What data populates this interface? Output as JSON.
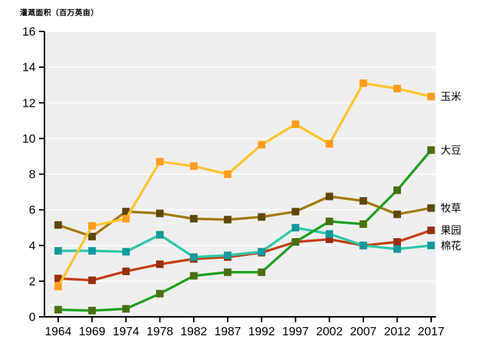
{
  "chart_data": {
    "type": "line",
    "title": "灌溉面积（百万英亩）",
    "xlabel": "",
    "ylabel": "灌溉面积（百万英亩）",
    "x_tick_labels": [
      "1964",
      "1969",
      "1974",
      "1978",
      "1982",
      "1987",
      "1992",
      "1997",
      "2002",
      "2007",
      "2012",
      "2017"
    ],
    "y_tick_labels": [
      "0",
      "2",
      "4",
      "6",
      "8",
      "10",
      "12",
      "14",
      "16"
    ],
    "ylim": [
      0,
      16
    ],
    "y_tick_step": 2,
    "grid": "horizontal",
    "legend_position": "right-end-of-line-labels",
    "marker": "square",
    "series": [
      {
        "key": "corn",
        "name": "玉米",
        "line_color": "#FFC431",
        "marker_color": "#FF9D1E",
        "values": [
          1.7,
          5.1,
          5.5,
          8.7,
          8.45,
          8.0,
          9.65,
          10.8,
          9.7,
          13.1,
          12.8,
          12.35
        ]
      },
      {
        "key": "soybean",
        "name": "大豆",
        "line_color": "#1EA11E",
        "marker_color": "#4A6E12",
        "values": [
          0.4,
          0.35,
          0.45,
          1.3,
          2.3,
          2.5,
          2.5,
          4.2,
          5.35,
          5.2,
          7.1,
          9.35
        ]
      },
      {
        "key": "pasture",
        "name": "牧草",
        "line_color": "#A2790D",
        "marker_color": "#5F470B",
        "values": [
          5.15,
          4.5,
          5.9,
          5.8,
          5.5,
          5.45,
          5.6,
          5.9,
          6.75,
          6.5,
          5.75,
          6.1
        ]
      },
      {
        "key": "orchard",
        "name": "果园",
        "line_color": "#C34017",
        "marker_color": "#96300D",
        "values": [
          2.15,
          2.05,
          2.55,
          2.95,
          3.25,
          3.35,
          3.6,
          4.2,
          4.35,
          4.0,
          4.2,
          4.85
        ]
      },
      {
        "key": "cotton",
        "name": "棉花",
        "line_color": "#2FC7A6",
        "marker_color": "#13989E",
        "values": [
          3.7,
          3.7,
          3.65,
          4.6,
          3.35,
          3.45,
          3.65,
          5.0,
          4.65,
          4.0,
          3.8,
          4.0
        ]
      }
    ],
    "draw_order": [
      "orchard",
      "cotton",
      "pasture",
      "corn",
      "soybean"
    ],
    "colors": {
      "plot_background": "#EFEFEF",
      "grid_line": "#FFFFFF",
      "axis": "#000000",
      "page_background": "#FFFFFF",
      "tick_text": "#000000"
    }
  }
}
